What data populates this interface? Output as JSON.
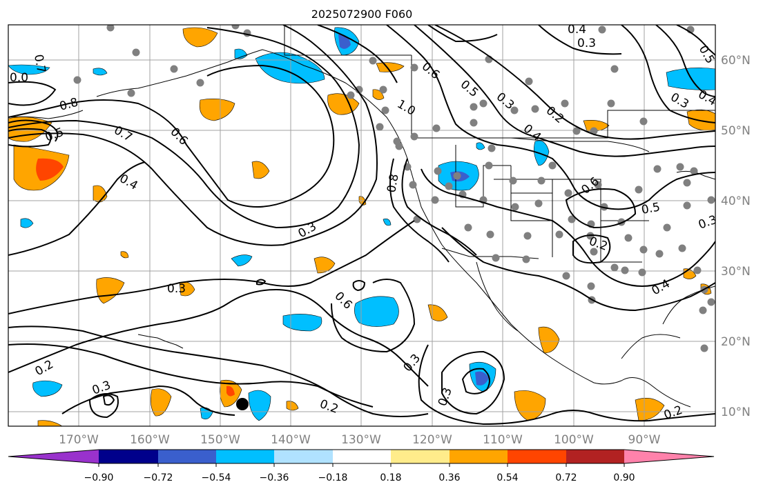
{
  "title": "2025072900 F060",
  "lon_labels": [
    "170°W",
    "160°W",
    "150°W",
    "140°W",
    "130°W",
    "120°W",
    "110°W",
    "100°W",
    "90°W"
  ],
  "lat_labels": [
    "60°N",
    "50°N",
    "40°N",
    "30°N",
    "20°N",
    "10°N"
  ],
  "contour_labels": [
    "0.7",
    "0.8",
    "0.5",
    "0.7",
    "0.6",
    "0.4",
    "0.3",
    "0.3",
    "0.2",
    "0.3",
    "0.6",
    "0.3",
    "0.3",
    "0.2",
    "0.6",
    "0.5",
    "0.3",
    "1.0",
    "0.4",
    "0.2",
    "0.8",
    "0.4",
    "0.3",
    "0.6",
    "0.5",
    "0.2",
    "0.4",
    "0.5",
    "0.4",
    "0.3",
    "0.2",
    "0.3",
    "0.0"
  ],
  "colorbar": {
    "ticks": [
      "−0.90",
      "−0.72",
      "−0.54",
      "−0.36",
      "−0.18",
      "0.18",
      "0.36",
      "0.54",
      "0.72",
      "0.90"
    ],
    "colors": [
      "#9932cc",
      "#00008b",
      "#3a5fcd",
      "#00bfff",
      "#b0e2ff",
      "#ffffff",
      "#ffec8b",
      "#ffa500",
      "#ff4500",
      "#b22222",
      "#ff82ab"
    ]
  },
  "shading_colors": {
    "neg_light": "#00bfff",
    "neg_mid": "#3a5fcd",
    "pos_light": "#ffa500",
    "pos_mid": "#ff4500",
    "station": "#808080"
  }
}
